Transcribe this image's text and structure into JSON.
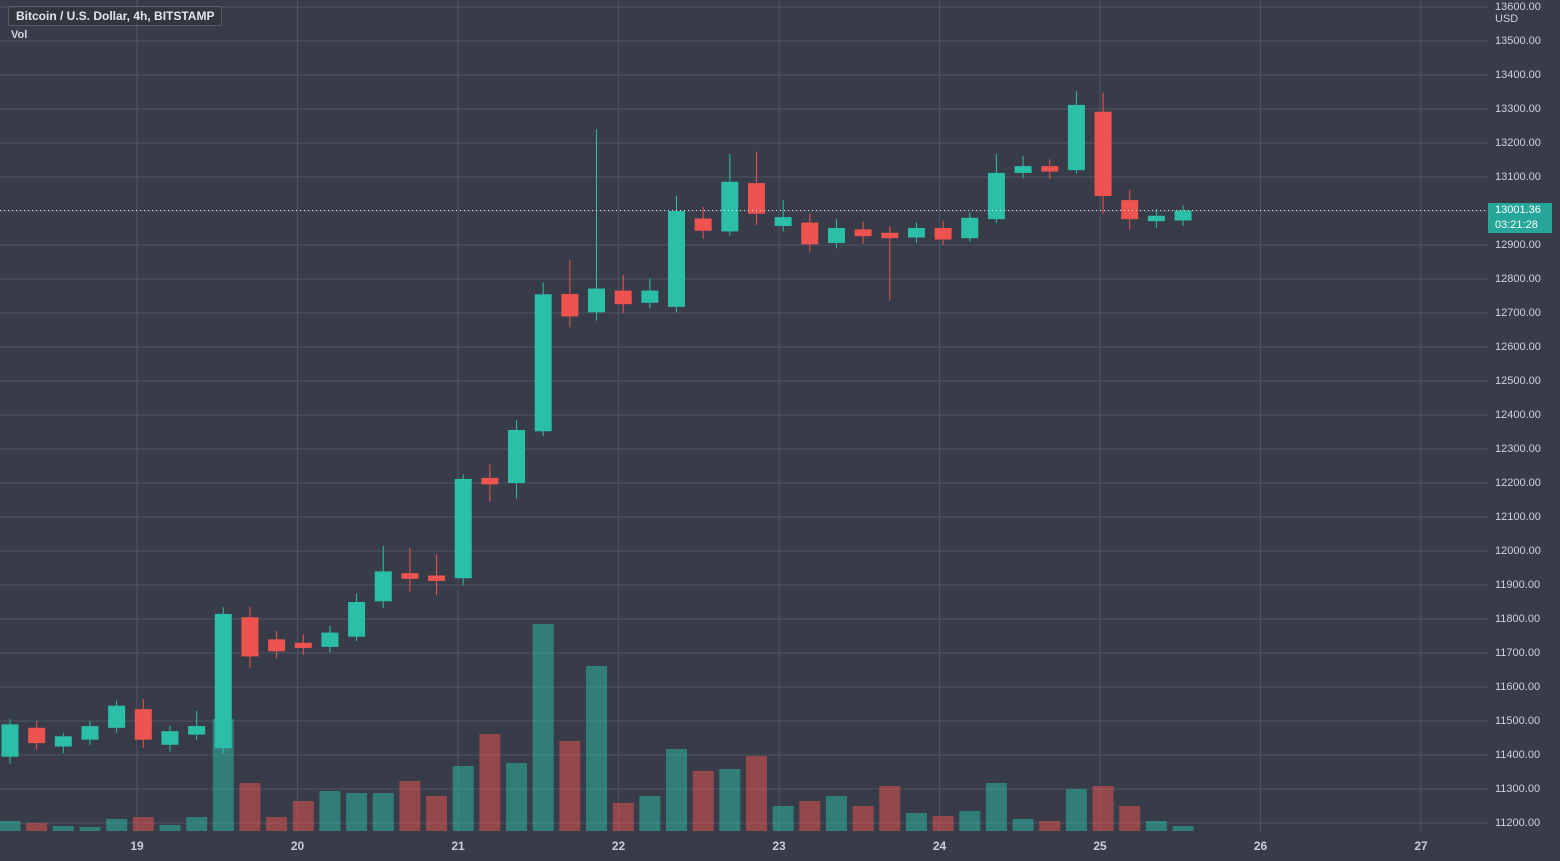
{
  "legend": {
    "symbol_title": "Bitcoin / U.S. Dollar, 4h, BITSTAMP",
    "indicator_label": "Vol"
  },
  "price_axis": {
    "currency_label": "USD",
    "current_price_label": "13001.36",
    "countdown_label": "03:21:28",
    "ticks": [
      "13600.00",
      "13500.00",
      "13400.00",
      "13300.00",
      "13200.00",
      "13100.00",
      "13000.00",
      "12900.00",
      "12800.00",
      "12700.00",
      "12600.00",
      "12500.00",
      "12400.00",
      "12300.00",
      "12200.00",
      "12100.00",
      "12000.00",
      "11900.00",
      "11800.00",
      "11700.00",
      "11600.00",
      "11500.00",
      "11400.00",
      "11300.00",
      "11200.00"
    ]
  },
  "time_axis": {
    "labels": [
      "19",
      "20",
      "21",
      "22",
      "23",
      "24",
      "25",
      "26",
      "27"
    ]
  },
  "colors": {
    "background": "#373c48",
    "grid": "#4d5364",
    "up": "#2bbfa8",
    "down": "#ef5350",
    "axis_text": "#ced2dc",
    "badge_bg": "#26a69a",
    "badge_text": "#ffffff",
    "price_line": "#e9ebf1"
  },
  "chart_data": {
    "type": "candlestick",
    "title": "Bitcoin / U.S. Dollar, 4h, BITSTAMP",
    "symbol": "Bitcoin / U.S. Dollar",
    "interval": "4h",
    "exchange": "BITSTAMP",
    "current_price": 13001.36,
    "countdown": "03:21:28",
    "ylim": [
      11200,
      13600
    ],
    "xlabels": [
      "19",
      "20",
      "21",
      "22",
      "23",
      "24",
      "25",
      "26",
      "27"
    ],
    "grid": true,
    "volume_scale": "relative (pixel-estimated, max 207)",
    "columns": [
      "open",
      "high",
      "low",
      "close",
      "volume_rel"
    ],
    "candles": [
      [
        11395,
        11505,
        11375,
        11490,
        10
      ],
      [
        11480,
        11500,
        11415,
        11435,
        8
      ],
      [
        11425,
        11465,
        11405,
        11455,
        5
      ],
      [
        11445,
        11500,
        11430,
        11485,
        4
      ],
      [
        11480,
        11560,
        11465,
        11545,
        12
      ],
      [
        11535,
        11565,
        11420,
        11445,
        14
      ],
      [
        11430,
        11485,
        11410,
        11470,
        6
      ],
      [
        11460,
        11530,
        11445,
        11485,
        14
      ],
      [
        11420,
        11835,
        11405,
        11815,
        112
      ],
      [
        11805,
        11835,
        11655,
        11690,
        48
      ],
      [
        11740,
        11765,
        11685,
        11705,
        14
      ],
      [
        11730,
        11755,
        11695,
        11715,
        30
      ],
      [
        11718,
        11780,
        11702,
        11760,
        40
      ],
      [
        11748,
        11875,
        11735,
        11850,
        38
      ],
      [
        11852,
        12015,
        11832,
        11940,
        38
      ],
      [
        11935,
        12010,
        11880,
        11918,
        50
      ],
      [
        11928,
        11990,
        11870,
        11912,
        35
      ],
      [
        11920,
        12225,
        11898,
        12212,
        65
      ],
      [
        12215,
        12255,
        12145,
        12196,
        97
      ],
      [
        12200,
        12385,
        12155,
        12356,
        68
      ],
      [
        12352,
        12790,
        12338,
        12755,
        207
      ],
      [
        12756,
        12855,
        12658,
        12690,
        90
      ],
      [
        12702,
        13240,
        12678,
        12772,
        165
      ],
      [
        12766,
        12812,
        12700,
        12726,
        28
      ],
      [
        12730,
        12802,
        12714,
        12766,
        35
      ],
      [
        12718,
        13045,
        12702,
        13000,
        82
      ],
      [
        12978,
        13012,
        12918,
        12942,
        60
      ],
      [
        12940,
        13168,
        12928,
        13086,
        62
      ],
      [
        13082,
        13175,
        12958,
        12992,
        75
      ],
      [
        12956,
        13032,
        12940,
        12982,
        25
      ],
      [
        12966,
        12992,
        12878,
        12902,
        30
      ],
      [
        12906,
        12976,
        12890,
        12950,
        35
      ],
      [
        12946,
        12968,
        12904,
        12926,
        25
      ],
      [
        12936,
        12956,
        12736,
        12920,
        45
      ],
      [
        12922,
        12966,
        12906,
        12950,
        18
      ],
      [
        12950,
        12972,
        12900,
        12916,
        15
      ],
      [
        12920,
        12996,
        12910,
        12980,
        20
      ],
      [
        12976,
        13168,
        12964,
        13112,
        48
      ],
      [
        13112,
        13162,
        13096,
        13132,
        12
      ],
      [
        13132,
        13152,
        13094,
        13116,
        10
      ],
      [
        13120,
        13352,
        13110,
        13312,
        42
      ],
      [
        13292,
        13348,
        12992,
        13044,
        45
      ],
      [
        13032,
        13062,
        12944,
        12976,
        25
      ],
      [
        12970,
        13006,
        12950,
        12986,
        10
      ],
      [
        12972,
        13016,
        12956,
        13001.36,
        5
      ]
    ]
  }
}
